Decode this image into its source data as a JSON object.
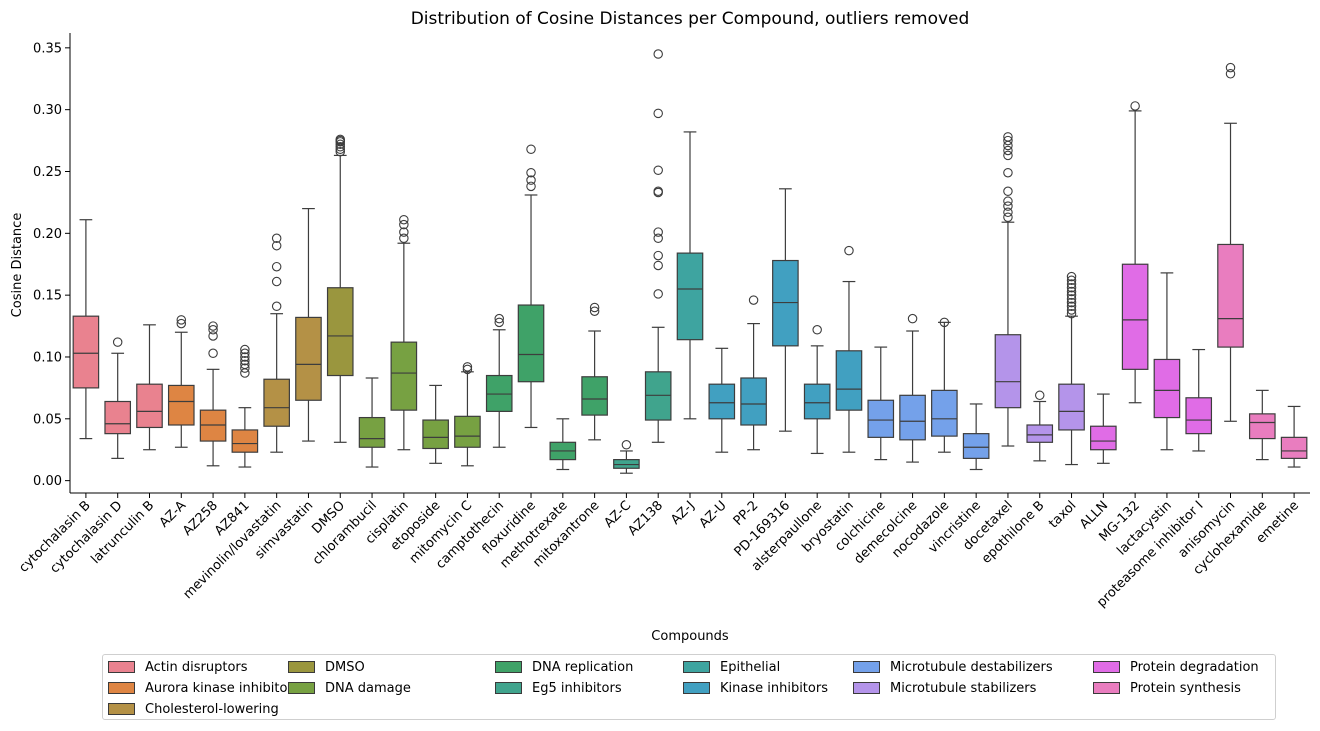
{
  "chart_data": {
    "type": "box",
    "title": "Distribution of Cosine Distances per Compound, outliers removed",
    "xlabel": "Compounds",
    "ylabel": "Cosine Distance",
    "ylim": [
      -0.01,
      0.362
    ],
    "yticks": [
      0.0,
      0.05,
      0.1,
      0.15,
      0.2,
      0.25,
      0.3,
      0.35
    ],
    "ytick_labels": [
      "0.00",
      "0.05",
      "0.10",
      "0.15",
      "0.20",
      "0.25",
      "0.30",
      "0.35"
    ],
    "grid": false,
    "legend_position": "bottom",
    "groups": [
      {
        "name": "Actin disruptors",
        "color": "#e9828f"
      },
      {
        "name": "Aurora kinase inhibitors",
        "color": "#de8543"
      },
      {
        "name": "Cholesterol-lowering",
        "color": "#b49146"
      },
      {
        "name": "DMSO",
        "color": "#9a963e"
      },
      {
        "name": "DNA damage",
        "color": "#77a142"
      },
      {
        "name": "DNA replication",
        "color": "#3fa268"
      },
      {
        "name": "Eg5 inhibitors",
        "color": "#40a48d"
      },
      {
        "name": "Epithelial",
        "color": "#3ea4a0"
      },
      {
        "name": "Kinase inhibitors",
        "color": "#41a0c1"
      },
      {
        "name": "Microtubule destabilizers",
        "color": "#74a1ea"
      },
      {
        "name": "Microtubule stabilizers",
        "color": "#b494ea"
      },
      {
        "name": "Protein degradation",
        "color": "#e06ce6"
      },
      {
        "name": "Protein synthesis",
        "color": "#e97dbf"
      }
    ],
    "categories": [
      "cytochalasin B",
      "cytochalasin D",
      "latrunculin B",
      "AZ-A",
      "AZ258",
      "AZ841",
      "mevinolin/lovastatin",
      "simvastatin",
      "DMSO",
      "chlorambucil",
      "cisplatin",
      "etoposide",
      "mitomycin C",
      "camptothecin",
      "floxuridine",
      "methotrexate",
      "mitoxantrone",
      "AZ-C",
      "AZ138",
      "AZ-J",
      "AZ-U",
      "PP-2",
      "PD-169316",
      "alsterpaullone",
      "bryostatin",
      "colchicine",
      "demecolcine",
      "nocodazole",
      "vincristine",
      "docetaxel",
      "epothilone B",
      "taxol",
      "ALLN",
      "MG-132",
      "lactacystin",
      "proteasome inhibitor I",
      "anisomycin",
      "cyclohexamide",
      "emetine"
    ],
    "boxes": [
      {
        "name": "cytochalasin B",
        "group": 0,
        "min": 0.034,
        "q1": 0.075,
        "median": 0.103,
        "q3": 0.133,
        "max": 0.211,
        "outliers": []
      },
      {
        "name": "cytochalasin D",
        "group": 0,
        "min": 0.018,
        "q1": 0.038,
        "median": 0.046,
        "q3": 0.064,
        "max": 0.103,
        "outliers": [
          0.112
        ]
      },
      {
        "name": "latrunculin B",
        "group": 0,
        "min": 0.025,
        "q1": 0.043,
        "median": 0.056,
        "q3": 0.078,
        "max": 0.126,
        "outliers": []
      },
      {
        "name": "AZ-A",
        "group": 1,
        "min": 0.027,
        "q1": 0.045,
        "median": 0.064,
        "q3": 0.077,
        "max": 0.12,
        "outliers": [
          0.127,
          0.13
        ]
      },
      {
        "name": "AZ258",
        "group": 1,
        "min": 0.012,
        "q1": 0.032,
        "median": 0.045,
        "q3": 0.057,
        "max": 0.09,
        "outliers": [
          0.103,
          0.117,
          0.122,
          0.125
        ]
      },
      {
        "name": "AZ841",
        "group": 1,
        "min": 0.011,
        "q1": 0.023,
        "median": 0.03,
        "q3": 0.041,
        "max": 0.059,
        "outliers": [
          0.087,
          0.091,
          0.094,
          0.097,
          0.1,
          0.103,
          0.106
        ]
      },
      {
        "name": "mevinolin/lovastatin",
        "group": 2,
        "min": 0.023,
        "q1": 0.044,
        "median": 0.059,
        "q3": 0.082,
        "max": 0.135,
        "outliers": [
          0.141,
          0.161,
          0.173,
          0.19,
          0.196
        ]
      },
      {
        "name": "simvastatin",
        "group": 2,
        "min": 0.032,
        "q1": 0.065,
        "median": 0.094,
        "q3": 0.132,
        "max": 0.22,
        "outliers": []
      },
      {
        "name": "DMSO",
        "group": 3,
        "min": 0.031,
        "q1": 0.085,
        "median": 0.117,
        "q3": 0.156,
        "max": 0.263,
        "outliers": [
          0.266,
          0.268,
          0.27,
          0.272,
          0.274,
          0.275,
          0.276
        ]
      },
      {
        "name": "chlorambucil",
        "group": 4,
        "min": 0.011,
        "q1": 0.027,
        "median": 0.034,
        "q3": 0.051,
        "max": 0.083,
        "outliers": []
      },
      {
        "name": "cisplatin",
        "group": 4,
        "min": 0.025,
        "q1": 0.057,
        "median": 0.087,
        "q3": 0.112,
        "max": 0.192,
        "outliers": [
          0.196,
          0.201,
          0.207,
          0.211
        ]
      },
      {
        "name": "etoposide",
        "group": 4,
        "min": 0.014,
        "q1": 0.026,
        "median": 0.035,
        "q3": 0.049,
        "max": 0.077,
        "outliers": []
      },
      {
        "name": "mitomycin C",
        "group": 4,
        "min": 0.012,
        "q1": 0.027,
        "median": 0.036,
        "q3": 0.052,
        "max": 0.088,
        "outliers": [
          0.09,
          0.092
        ]
      },
      {
        "name": "camptothecin",
        "group": 5,
        "min": 0.027,
        "q1": 0.056,
        "median": 0.07,
        "q3": 0.085,
        "max": 0.122,
        "outliers": [
          0.128,
          0.131
        ]
      },
      {
        "name": "floxuridine",
        "group": 5,
        "min": 0.043,
        "q1": 0.08,
        "median": 0.102,
        "q3": 0.142,
        "max": 0.231,
        "outliers": [
          0.238,
          0.243,
          0.249,
          0.268
        ]
      },
      {
        "name": "methotrexate",
        "group": 5,
        "min": 0.009,
        "q1": 0.017,
        "median": 0.024,
        "q3": 0.031,
        "max": 0.05,
        "outliers": []
      },
      {
        "name": "mitoxantrone",
        "group": 5,
        "min": 0.033,
        "q1": 0.053,
        "median": 0.066,
        "q3": 0.084,
        "max": 0.121,
        "outliers": [
          0.137,
          0.14
        ]
      },
      {
        "name": "AZ-C",
        "group": 6,
        "min": 0.006,
        "q1": 0.01,
        "median": 0.013,
        "q3": 0.017,
        "max": 0.024,
        "outliers": [
          0.029
        ]
      },
      {
        "name": "AZ138",
        "group": 6,
        "min": 0.031,
        "q1": 0.049,
        "median": 0.069,
        "q3": 0.088,
        "max": 0.124,
        "outliers": [
          0.151,
          0.174,
          0.182,
          0.196,
          0.201,
          0.233,
          0.234,
          0.251,
          0.297,
          0.345
        ]
      },
      {
        "name": "AZ-J",
        "group": 7,
        "min": 0.05,
        "q1": 0.114,
        "median": 0.155,
        "q3": 0.184,
        "max": 0.282,
        "outliers": []
      },
      {
        "name": "AZ-U",
        "group": 8,
        "min": 0.023,
        "q1": 0.05,
        "median": 0.063,
        "q3": 0.078,
        "max": 0.107,
        "outliers": []
      },
      {
        "name": "PP-2",
        "group": 8,
        "min": 0.025,
        "q1": 0.045,
        "median": 0.062,
        "q3": 0.083,
        "max": 0.127,
        "outliers": [
          0.146
        ]
      },
      {
        "name": "PD-169316",
        "group": 8,
        "min": 0.04,
        "q1": 0.109,
        "median": 0.144,
        "q3": 0.178,
        "max": 0.236,
        "outliers": []
      },
      {
        "name": "alsterpaullone",
        "group": 8,
        "min": 0.022,
        "q1": 0.05,
        "median": 0.063,
        "q3": 0.078,
        "max": 0.109,
        "outliers": [
          0.122
        ]
      },
      {
        "name": "bryostatin",
        "group": 8,
        "min": 0.023,
        "q1": 0.057,
        "median": 0.074,
        "q3": 0.105,
        "max": 0.161,
        "outliers": [
          0.186
        ]
      },
      {
        "name": "colchicine",
        "group": 9,
        "min": 0.017,
        "q1": 0.035,
        "median": 0.049,
        "q3": 0.065,
        "max": 0.108,
        "outliers": []
      },
      {
        "name": "demecolcine",
        "group": 9,
        "min": 0.015,
        "q1": 0.033,
        "median": 0.048,
        "q3": 0.069,
        "max": 0.121,
        "outliers": [
          0.131
        ]
      },
      {
        "name": "nocodazole",
        "group": 9,
        "min": 0.023,
        "q1": 0.036,
        "median": 0.05,
        "q3": 0.073,
        "max": 0.128,
        "outliers": [
          0.128
        ]
      },
      {
        "name": "vincristine",
        "group": 9,
        "min": 0.009,
        "q1": 0.018,
        "median": 0.027,
        "q3": 0.038,
        "max": 0.062,
        "outliers": []
      },
      {
        "name": "docetaxel",
        "group": 10,
        "min": 0.028,
        "q1": 0.059,
        "median": 0.08,
        "q3": 0.118,
        "max": 0.209,
        "outliers": [
          0.213,
          0.217,
          0.222,
          0.226,
          0.234,
          0.249,
          0.263,
          0.267,
          0.271,
          0.275,
          0.278
        ]
      },
      {
        "name": "epothilone B",
        "group": 10,
        "min": 0.016,
        "q1": 0.031,
        "median": 0.037,
        "q3": 0.045,
        "max": 0.064,
        "outliers": [
          0.069
        ]
      },
      {
        "name": "taxol",
        "group": 10,
        "min": 0.013,
        "q1": 0.041,
        "median": 0.056,
        "q3": 0.078,
        "max": 0.133,
        "outliers": [
          0.135,
          0.138,
          0.141,
          0.144,
          0.147,
          0.15,
          0.153,
          0.156,
          0.159,
          0.162,
          0.165
        ]
      },
      {
        "name": "ALLN",
        "group": 11,
        "min": 0.014,
        "q1": 0.025,
        "median": 0.032,
        "q3": 0.044,
        "max": 0.07,
        "outliers": []
      },
      {
        "name": "MG-132",
        "group": 11,
        "min": 0.063,
        "q1": 0.09,
        "median": 0.13,
        "q3": 0.175,
        "max": 0.299,
        "outliers": [
          0.303
        ]
      },
      {
        "name": "lactacystin",
        "group": 11,
        "min": 0.025,
        "q1": 0.051,
        "median": 0.073,
        "q3": 0.098,
        "max": 0.168,
        "outliers": []
      },
      {
        "name": "proteasome inhibitor I",
        "group": 11,
        "min": 0.024,
        "q1": 0.038,
        "median": 0.049,
        "q3": 0.067,
        "max": 0.106,
        "outliers": []
      },
      {
        "name": "anisomycin",
        "group": 12,
        "min": 0.048,
        "q1": 0.108,
        "median": 0.131,
        "q3": 0.191,
        "max": 0.289,
        "outliers": [
          0.329,
          0.334
        ]
      },
      {
        "name": "cyclohexamide",
        "group": 12,
        "min": 0.017,
        "q1": 0.034,
        "median": 0.047,
        "q3": 0.054,
        "max": 0.073,
        "outliers": []
      },
      {
        "name": "emetine",
        "group": 12,
        "min": 0.011,
        "q1": 0.018,
        "median": 0.024,
        "q3": 0.035,
        "max": 0.06,
        "outliers": []
      }
    ]
  }
}
